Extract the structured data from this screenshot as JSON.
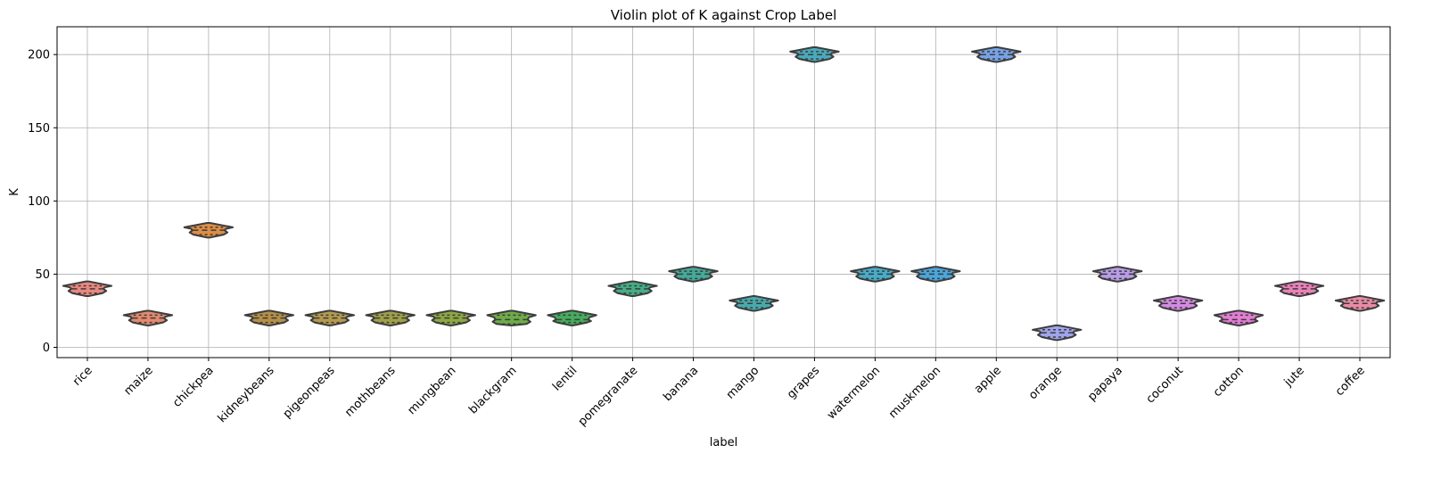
{
  "chart_data": {
    "type": "violin",
    "title": "Violin plot of K against Crop Label",
    "xlabel": "label",
    "ylabel": "K",
    "ylim": [
      -7,
      219
    ],
    "yticks": [
      0,
      50,
      100,
      150,
      200
    ],
    "grid": true,
    "categories": [
      "rice",
      "maize",
      "chickpea",
      "kidneybeans",
      "pigeonpeas",
      "mothbeans",
      "mungbean",
      "blackgram",
      "lentil",
      "pomegranate",
      "banana",
      "mango",
      "grapes",
      "watermelon",
      "muskmelon",
      "apple",
      "orange",
      "papaya",
      "coconut",
      "cotton",
      "jute",
      "coffee"
    ],
    "colors": [
      "#e8877f",
      "#e38a6f",
      "#dd8e45",
      "#b69048",
      "#b59a4e",
      "#a1a047",
      "#8ea842",
      "#6eac48",
      "#45ad5d",
      "#44ad86",
      "#44aa99",
      "#47aaad",
      "#48aaba",
      "#48acc9",
      "#4aa6db",
      "#77a3e6",
      "#9fa4ea",
      "#b99ce8",
      "#d489e2",
      "#e47dd5",
      "#ea81b9",
      "#ea8aa7"
    ],
    "min": [
      35,
      15,
      75,
      15,
      15,
      15,
      15,
      15,
      15,
      35,
      45,
      25,
      195,
      45,
      45,
      195,
      5,
      45,
      25,
      15,
      35,
      25
    ],
    "q1": [
      37,
      17,
      77,
      17,
      17,
      17,
      17,
      16,
      17,
      37,
      47,
      27,
      197,
      47,
      47,
      197,
      7,
      47,
      27,
      17,
      37,
      27
    ],
    "median": [
      40,
      20,
      80,
      20,
      20,
      20,
      20,
      19,
      19,
      40,
      50,
      30,
      200,
      50,
      50,
      200,
      10,
      50,
      30,
      19,
      40,
      30
    ],
    "q3": [
      42,
      22,
      82,
      22,
      22,
      22,
      22,
      22,
      22,
      42,
      52,
      32,
      202,
      52,
      52,
      202,
      12,
      52,
      32,
      22,
      42,
      32
    ],
    "max": [
      45,
      25,
      85,
      25,
      25,
      25,
      25,
      25,
      25,
      45,
      55,
      35,
      205,
      55,
      55,
      205,
      15,
      55,
      35,
      25,
      45,
      35
    ],
    "inner": "quartile"
  }
}
